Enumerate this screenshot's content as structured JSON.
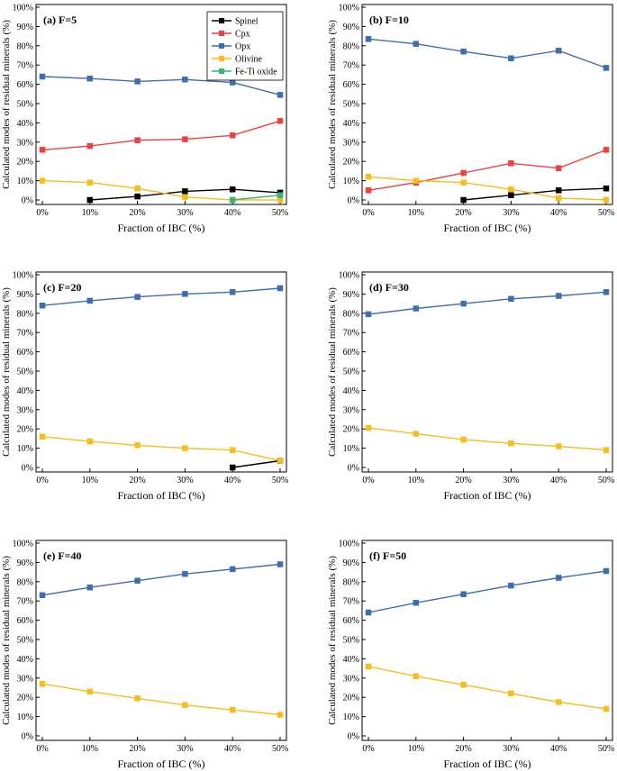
{
  "figure": {
    "legend_position": "top-right of panel (a)",
    "legend": [
      {
        "name": "Spinel",
        "color": "#000000"
      },
      {
        "name": "Cpx",
        "color": "#ef4040"
      },
      {
        "name": "Opx",
        "color": "#3f6eac"
      },
      {
        "name": "Olivine",
        "color": "#f5bd1f"
      },
      {
        "name": "Fe-Ti oxide",
        "color": "#3cb371"
      }
    ]
  },
  "chart_data": [
    {
      "type": "line",
      "title": "(a)  F=5",
      "xlabel": "Fraction of IBC (%)",
      "ylabel": "Calculated modes of residual minerals (%)",
      "categories": [
        "0%",
        "10%",
        "20%",
        "30%",
        "40%",
        "50%"
      ],
      "yticks": [
        "0%",
        "10%",
        "20%",
        "30%",
        "40%",
        "50%",
        "60%",
        "70%",
        "80%",
        "90%",
        "100%"
      ],
      "ylim": [
        0,
        100
      ],
      "x": [
        0,
        10,
        20,
        30,
        40,
        50
      ],
      "series": [
        {
          "name": "Spinel",
          "color": "#000000",
          "values": [
            null,
            0,
            1.8,
            4.5,
            5.5,
            3.8
          ]
        },
        {
          "name": "Cpx",
          "color": "#ef4040",
          "values": [
            26,
            28,
            31,
            31.5,
            33.5,
            41
          ]
        },
        {
          "name": "Opx",
          "color": "#3f6eac",
          "values": [
            64,
            63,
            61.5,
            62.5,
            61,
            54.5
          ]
        },
        {
          "name": "Olivine",
          "color": "#f5bd1f",
          "values": [
            10,
            9,
            6,
            1.5,
            0,
            0
          ]
        },
        {
          "name": "Fe-Ti oxide",
          "color": "#3cb371",
          "values": [
            null,
            null,
            null,
            null,
            0,
            2.5
          ]
        }
      ]
    },
    {
      "type": "line",
      "title": "(b)  F=10",
      "xlabel": "Fraction of IBC (%)",
      "ylabel": "Calculated modes of residual minerals (%)",
      "categories": [
        "0%",
        "10%",
        "20%",
        "30%",
        "40%",
        "50%"
      ],
      "yticks": [
        "0%",
        "10%",
        "20%",
        "30%",
        "40%",
        "50%",
        "60%",
        "70%",
        "80%",
        "90%",
        "100%"
      ],
      "ylim": [
        0,
        100
      ],
      "x": [
        0,
        10,
        20,
        30,
        40,
        50
      ],
      "series": [
        {
          "name": "Spinel",
          "color": "#000000",
          "values": [
            null,
            null,
            0,
            2.5,
            5,
            6
          ]
        },
        {
          "name": "Cpx",
          "color": "#ef4040",
          "values": [
            5,
            9,
            14,
            19,
            16.5,
            26
          ]
        },
        {
          "name": "Opx",
          "color": "#3f6eac",
          "values": [
            83.5,
            81,
            77,
            73.5,
            77.5,
            68.5
          ]
        },
        {
          "name": "Olivine",
          "color": "#f5bd1f",
          "values": [
            12,
            10,
            9,
            5.5,
            1,
            0
          ]
        }
      ]
    },
    {
      "type": "line",
      "title": "(c)  F=20",
      "xlabel": "Fraction of IBC (%)",
      "ylabel": "Calculated modes of residual minerals (%)",
      "categories": [
        "0%",
        "10%",
        "20%",
        "30%",
        "40%",
        "50%"
      ],
      "yticks": [
        "0%",
        "10%",
        "20%",
        "30%",
        "40%",
        "50%",
        "60%",
        "70%",
        "80%",
        "90%",
        "100%"
      ],
      "ylim": [
        0,
        100
      ],
      "x": [
        0,
        10,
        20,
        30,
        40,
        50
      ],
      "series": [
        {
          "name": "Spinel",
          "color": "#000000",
          "values": [
            null,
            null,
            null,
            null,
            0,
            3.5
          ]
        },
        {
          "name": "Opx",
          "color": "#3f6eac",
          "values": [
            84,
            86.5,
            88.5,
            90,
            91,
            93
          ]
        },
        {
          "name": "Olivine",
          "color": "#f5bd1f",
          "values": [
            16,
            13.5,
            11.5,
            10,
            9,
            3.5
          ]
        }
      ]
    },
    {
      "type": "line",
      "title": "(d)  F=30",
      "xlabel": "Fraction of IBC (%)",
      "ylabel": "Calculated modes of residual minerals (%)",
      "categories": [
        "0%",
        "10%",
        "20%",
        "30%",
        "40%",
        "50%"
      ],
      "yticks": [
        "0%",
        "10%",
        "20%",
        "30%",
        "40%",
        "50%",
        "60%",
        "70%",
        "80%",
        "90%",
        "100%"
      ],
      "ylim": [
        0,
        100
      ],
      "x": [
        0,
        10,
        20,
        30,
        40,
        50
      ],
      "series": [
        {
          "name": "Opx",
          "color": "#3f6eac",
          "values": [
            79.5,
            82.5,
            85,
            87.5,
            89,
            91
          ]
        },
        {
          "name": "Olivine",
          "color": "#f5bd1f",
          "values": [
            20.5,
            17.5,
            14.5,
            12.5,
            11,
            9
          ]
        }
      ]
    },
    {
      "type": "line",
      "title": "(e)  F=40",
      "xlabel": "Fraction of IBC (%)",
      "ylabel": "Calculated modes of residual minerals (%)",
      "categories": [
        "0%",
        "10%",
        "20%",
        "30%",
        "40%",
        "50%"
      ],
      "yticks": [
        "0%",
        "10%",
        "20%",
        "30%",
        "40%",
        "50%",
        "60%",
        "70%",
        "80%",
        "90%",
        "100%"
      ],
      "ylim": [
        0,
        100
      ],
      "x": [
        0,
        10,
        20,
        30,
        40,
        50
      ],
      "series": [
        {
          "name": "Opx",
          "color": "#3f6eac",
          "values": [
            73,
            77,
            80.5,
            84,
            86.5,
            89
          ]
        },
        {
          "name": "Olivine",
          "color": "#f5bd1f",
          "values": [
            27,
            23,
            19.5,
            16,
            13.5,
            11
          ]
        }
      ]
    },
    {
      "type": "line",
      "title": "(f)  F=50",
      "xlabel": "Fraction of IBC (%)",
      "ylabel": "Calculated modes of residual minerals (%)",
      "categories": [
        "0%",
        "10%",
        "20%",
        "30%",
        "40%",
        "50%"
      ],
      "yticks": [
        "0%",
        "10%",
        "20%",
        "30%",
        "40%",
        "50%",
        "60%",
        "70%",
        "80%",
        "90%",
        "100%"
      ],
      "ylim": [
        0,
        100
      ],
      "x": [
        0,
        10,
        20,
        30,
        40,
        50
      ],
      "series": [
        {
          "name": "Opx",
          "color": "#3f6eac",
          "values": [
            64,
            69,
            73.5,
            78,
            82,
            85.5
          ]
        },
        {
          "name": "Olivine",
          "color": "#f5bd1f",
          "values": [
            36,
            31,
            26.5,
            22,
            17.5,
            14
          ]
        }
      ]
    }
  ]
}
